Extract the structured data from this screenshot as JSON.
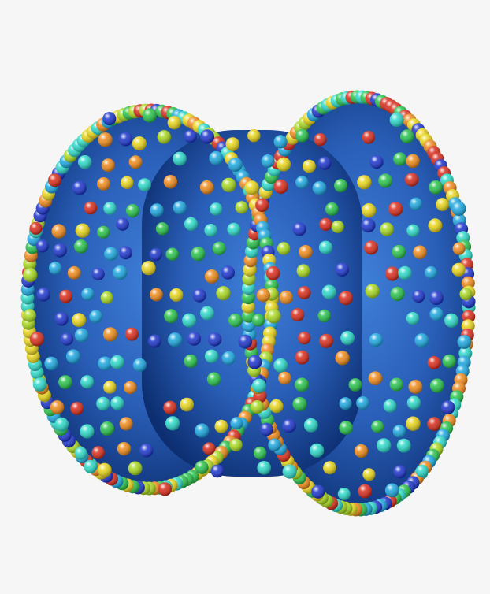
{
  "scene": {
    "background": "#f6f6f6",
    "body_color": "#1f4fa0",
    "body_highlight": "#3f7fd8",
    "body_shadow": "#0d2f72",
    "sphere_colors": [
      "#1a33cc",
      "#1aa7e0",
      "#2bd9c9",
      "#27c24a",
      "#a8d81f",
      "#e8d51a",
      "#ef8a1a",
      "#d92b1a"
    ]
  }
}
